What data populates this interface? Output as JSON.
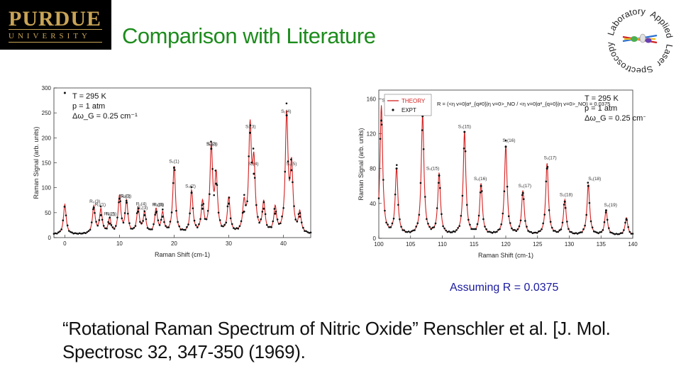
{
  "header": {
    "logo_name": "PURDUE",
    "logo_sub": "UNIVERSITY",
    "title": "Comparison with Literature",
    "lab_logo_words": [
      "Applied",
      "Laser",
      "Spectroscopy",
      "Laboratory"
    ]
  },
  "chart_data": [
    {
      "type": "line",
      "xlabel": "Raman Shift (cm-1)",
      "ylabel": "Raman Signal (arb. units)",
      "xlim": [
        -2,
        45
      ],
      "ylim": [
        0,
        300
      ],
      "xticks": [
        0,
        10,
        20,
        30,
        40
      ],
      "yticks": [
        0,
        50,
        100,
        150,
        200,
        250,
        300
      ],
      "annotations": [
        "T = 295 K",
        "p = 1 atm",
        "Δω_G = 0.25 cm⁻¹"
      ],
      "peak_labels": [
        {
          "x": 5.5,
          "label": "R₀(3)"
        },
        {
          "x": 6.5,
          "label": "R₂(1)"
        },
        {
          "x": 8.2,
          "label": "R₀(2)"
        },
        {
          "x": 8.5,
          "label": "R₁(1)"
        },
        {
          "x": 11.0,
          "label": "S₂(0)"
        },
        {
          "x": 11.2,
          "label": "R₂(2)"
        },
        {
          "x": 14.0,
          "label": "R₁(4)"
        },
        {
          "x": 14.2,
          "label": "R₂(3)"
        },
        {
          "x": 17.0,
          "label": "R₀(5)"
        },
        {
          "x": 17.2,
          "label": "R₂(4)"
        },
        {
          "x": 20.0,
          "label": "S₁(1)"
        },
        {
          "x": 23.0,
          "label": "S₂(2)"
        },
        {
          "x": 26.8,
          "label": "S₁(2)"
        },
        {
          "x": 27.0,
          "label": "S₂(3)"
        },
        {
          "x": 34.0,
          "label": "S₁(3)"
        },
        {
          "x": 34.5,
          "label": "S₂(4)"
        },
        {
          "x": 40.5,
          "label": "S₁(4)"
        },
        {
          "x": 41.5,
          "label": "S₂(5)"
        }
      ],
      "peaks": [
        {
          "x": 0,
          "theory": 60,
          "expt": 290
        },
        {
          "x": 5.3,
          "theory": 55,
          "expt": 60
        },
        {
          "x": 6.6,
          "theory": 48,
          "expt": 45
        },
        {
          "x": 8.2,
          "theory": 30,
          "expt": 28
        },
        {
          "x": 10.0,
          "theory": 75,
          "expt": 78
        },
        {
          "x": 11.3,
          "theory": 65,
          "expt": 70
        },
        {
          "x": 13.4,
          "theory": 50,
          "expt": 52
        },
        {
          "x": 14.6,
          "theory": 42,
          "expt": 45
        },
        {
          "x": 16.7,
          "theory": 48,
          "expt": 50
        },
        {
          "x": 17.9,
          "theory": 40,
          "expt": 42
        },
        {
          "x": 20.0,
          "theory": 135,
          "expt": 140
        },
        {
          "x": 23.2,
          "theory": 85,
          "expt": 90
        },
        {
          "x": 25.2,
          "theory": 60,
          "expt": 58
        },
        {
          "x": 26.8,
          "theory": 170,
          "expt": 178
        },
        {
          "x": 27.7,
          "theory": 110,
          "expt": 108
        },
        {
          "x": 30.0,
          "theory": 70,
          "expt": 68
        },
        {
          "x": 32.8,
          "theory": 55,
          "expt": 52
        },
        {
          "x": 33.9,
          "theory": 205,
          "expt": 210
        },
        {
          "x": 34.6,
          "theory": 130,
          "expt": 128
        },
        {
          "x": 36.4,
          "theory": 60,
          "expt": 58
        },
        {
          "x": 38.5,
          "theory": 50,
          "expt": 48
        },
        {
          "x": 40.6,
          "theory": 235,
          "expt": 245
        },
        {
          "x": 41.5,
          "theory": 130,
          "expt": 135
        },
        {
          "x": 43.0,
          "theory": 40,
          "expt": 42
        }
      ]
    },
    {
      "type": "line",
      "xlabel": "Raman Shift (cm-1)",
      "ylabel": "Raman Signal (arb. units)",
      "xlim": [
        100,
        140
      ],
      "ylim": [
        0,
        170
      ],
      "xticks": [
        100,
        105,
        110,
        115,
        120,
        125,
        130,
        135,
        140
      ],
      "yticks": [
        0,
        40,
        80,
        120,
        160
      ],
      "legend": [
        "THEORY",
        "EXPT"
      ],
      "formula": "R = (<η v=0|α²_{q≠0}|η v=0>_NO / <η v=0|α²_{q=0}|η v=0>_NO) = 0.0375",
      "annotations": [
        "T = 295 K",
        "p = 1 atm",
        "Δω_G = 0.25 cm⁻¹"
      ],
      "peak_labels": [
        {
          "x": 101.5,
          "label": "S₂(14)"
        },
        {
          "x": 107.0,
          "label": "S₁(14)"
        },
        {
          "x": 108.5,
          "label": "S₂(15)"
        },
        {
          "x": 113.5,
          "label": "S₁(15)"
        },
        {
          "x": 116.0,
          "label": "S₂(16)"
        },
        {
          "x": 120.5,
          "label": "S₁(16)"
        },
        {
          "x": 123.0,
          "label": "S₂(17)"
        },
        {
          "x": 127.0,
          "label": "S₁(17)"
        },
        {
          "x": 129.5,
          "label": "S₂(18)"
        },
        {
          "x": 134.0,
          "label": "S₁(18)"
        },
        {
          "x": 136.5,
          "label": "S₂(19)"
        }
      ],
      "peaks": [
        {
          "x": 100.4,
          "theory": 148,
          "expt": 135
        },
        {
          "x": 102.8,
          "theory": 75,
          "expt": 80
        },
        {
          "x": 106.9,
          "theory": 138,
          "expt": 140
        },
        {
          "x": 109.5,
          "theory": 70,
          "expt": 72
        },
        {
          "x": 113.5,
          "theory": 118,
          "expt": 122
        },
        {
          "x": 116.1,
          "theory": 58,
          "expt": 60
        },
        {
          "x": 120.0,
          "theory": 102,
          "expt": 105
        },
        {
          "x": 122.7,
          "theory": 50,
          "expt": 52
        },
        {
          "x": 126.5,
          "theory": 82,
          "expt": 80
        },
        {
          "x": 129.3,
          "theory": 40,
          "expt": 42
        },
        {
          "x": 133.0,
          "theory": 58,
          "expt": 60
        },
        {
          "x": 135.8,
          "theory": 28,
          "expt": 32
        },
        {
          "x": 139.0,
          "theory": 20,
          "expt": 22
        }
      ]
    }
  ],
  "note": "Assuming R = 0.0375",
  "citation": "“Rotational Raman Spectrum of Nitric Oxide” Renschler et al. [J. Mol.  Spectrosc 32, 347-350 (1969)."
}
